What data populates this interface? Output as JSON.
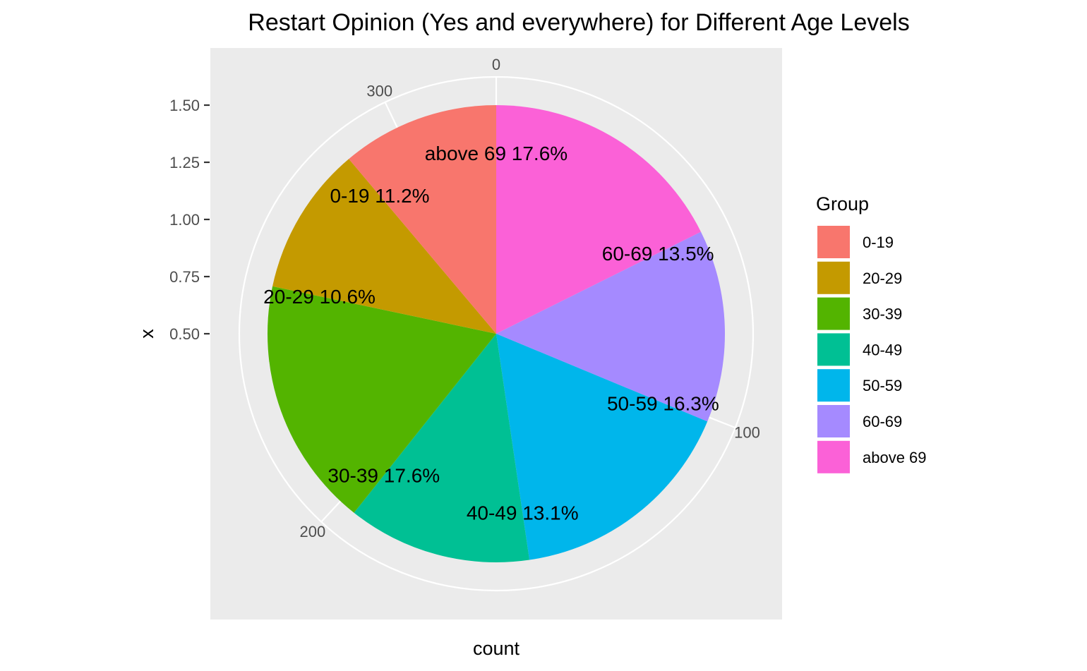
{
  "chart_data": {
    "type": "pie",
    "title": "Restart Opinion (Yes and everywhere) for Different Age Levels",
    "xlabel": "count",
    "ylabel": "x",
    "x_ticks": [
      "1.50",
      "1.25",
      "1.00",
      "0.75",
      "0.50"
    ],
    "x_tick_values": [
      1.5,
      1.25,
      1.0,
      0.75,
      0.5
    ],
    "x_range": [
      0.5,
      1.5
    ],
    "count_ticks": [
      "0",
      "100",
      "200",
      "300"
    ],
    "count_tick_values": [
      0,
      100,
      200,
      300
    ],
    "total": 323,
    "legend_title": "Group",
    "legend_position": "right",
    "grid": true,
    "categories": [
      "0-19",
      "20-29",
      "30-39",
      "40-49",
      "50-59",
      "60-69",
      "above 69"
    ],
    "values": [
      36,
      34,
      57,
      42,
      53,
      44,
      57
    ],
    "colors": [
      "#F8766D",
      "#C49A00",
      "#53B400",
      "#00C094",
      "#00B6EB",
      "#A58AFF",
      "#FB61D7"
    ],
    "slice_order": [
      "above 69",
      "60-69",
      "50-59",
      "40-49",
      "30-39",
      "20-29",
      "0-19"
    ],
    "labels": [
      "0-19 11.2%",
      "20-29 10.6%",
      "30-39 17.6%",
      "40-49 13.1%",
      "50-59 16.3%",
      "60-69 13.5%",
      "above 69 17.6%"
    ]
  }
}
